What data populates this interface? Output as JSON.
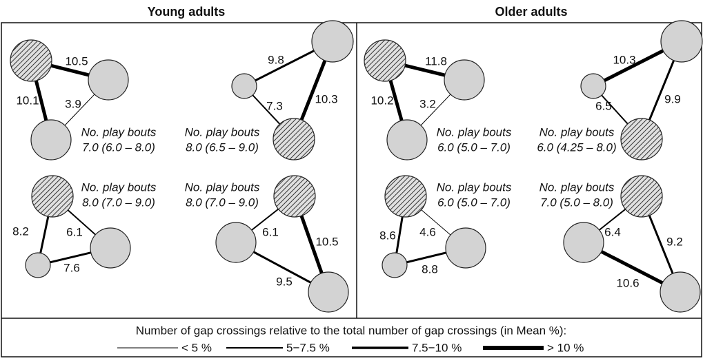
{
  "panels": [
    {
      "title": "Young adults",
      "groups": [
        {
          "bouts_label": "No. play bouts",
          "bouts_value": "7.0 (6.0 – 8.0)",
          "edges": [
            "10.5",
            "10.1",
            "3.9"
          ]
        },
        {
          "bouts_label": "No. play bouts",
          "bouts_value": "8.0 (6.5 – 9.0)",
          "edges": [
            "9.8",
            "10.3",
            "7.3"
          ]
        },
        {
          "bouts_label": "No. play bouts",
          "bouts_value": "8.0 (7.0 – 9.0)",
          "edges": [
            "8.2",
            "6.1",
            "7.6"
          ]
        },
        {
          "bouts_label": "No. play bouts",
          "bouts_value": "8.0 (7.0 – 9.0)",
          "edges": [
            "6.1",
            "10.5",
            "9.5"
          ]
        }
      ]
    },
    {
      "title": "Older adults",
      "groups": [
        {
          "bouts_label": "No. play bouts",
          "bouts_value": "6.0 (5.0 – 7.0)",
          "edges": [
            "11.8",
            "10.2",
            "3.2"
          ]
        },
        {
          "bouts_label": "No. play bouts",
          "bouts_value": "6.0 (4.25 – 8.0)",
          "edges": [
            "10.3",
            "9.9",
            "6.5"
          ]
        },
        {
          "bouts_label": "No. play bouts",
          "bouts_value": "6.0 (5.0 – 7.0)",
          "edges": [
            "8.6",
            "4.6",
            "8.8"
          ]
        },
        {
          "bouts_label": "No. play bouts",
          "bouts_value": "7.0 (5.0 – 8.0)",
          "edges": [
            "6.4",
            "9.2",
            "10.6"
          ]
        }
      ]
    }
  ],
  "legend": {
    "title": "Number of gap crossings relative to the total number of gap crossings (in Mean %):",
    "items": [
      "< 5 %",
      "5−7.5 %",
      "7.5−10 %",
      "> 10 %"
    ]
  }
}
